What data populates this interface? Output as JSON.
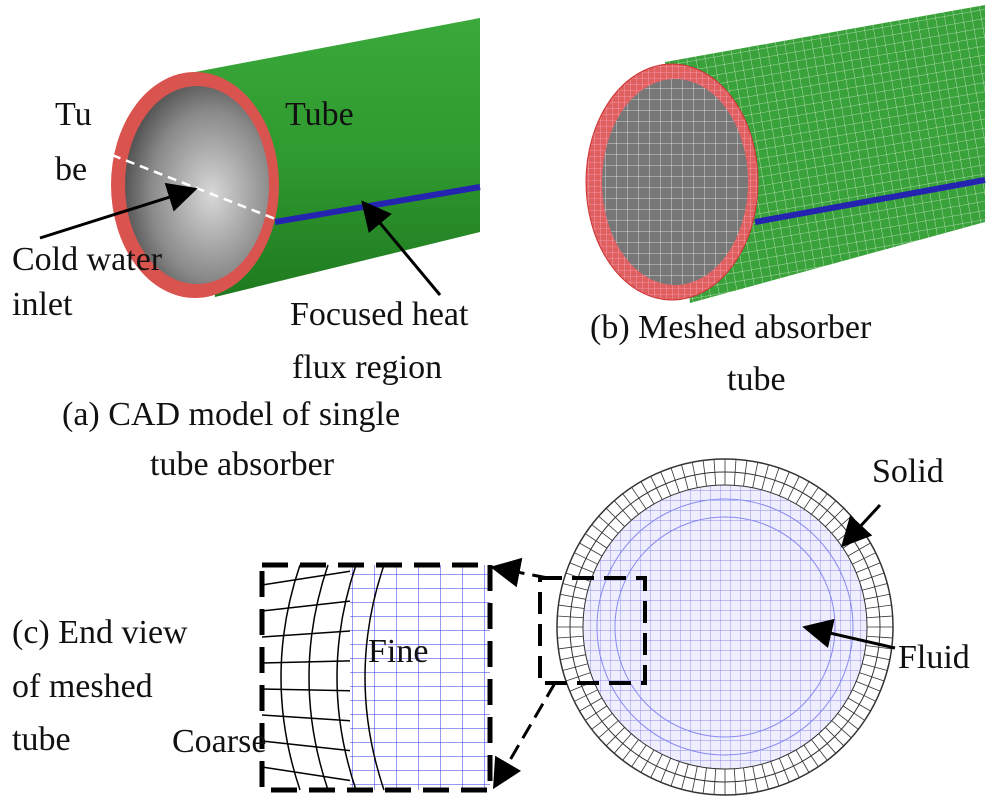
{
  "panel_a": {
    "labels": [
      "Tu",
      "be",
      "Tube",
      "Cold water",
      "inlet",
      "Focused heat",
      "flux region"
    ],
    "caption": [
      "(a) CAD model of single",
      "tube absorber"
    ]
  },
  "panel_b": {
    "caption": [
      "(b) Meshed absorber",
      "tube"
    ]
  },
  "panel_c": {
    "caption": [
      "(c) End view",
      "of meshed",
      "tube"
    ],
    "labels": [
      "Solid",
      "Fluid",
      "Fine",
      "Coarse"
    ]
  }
}
